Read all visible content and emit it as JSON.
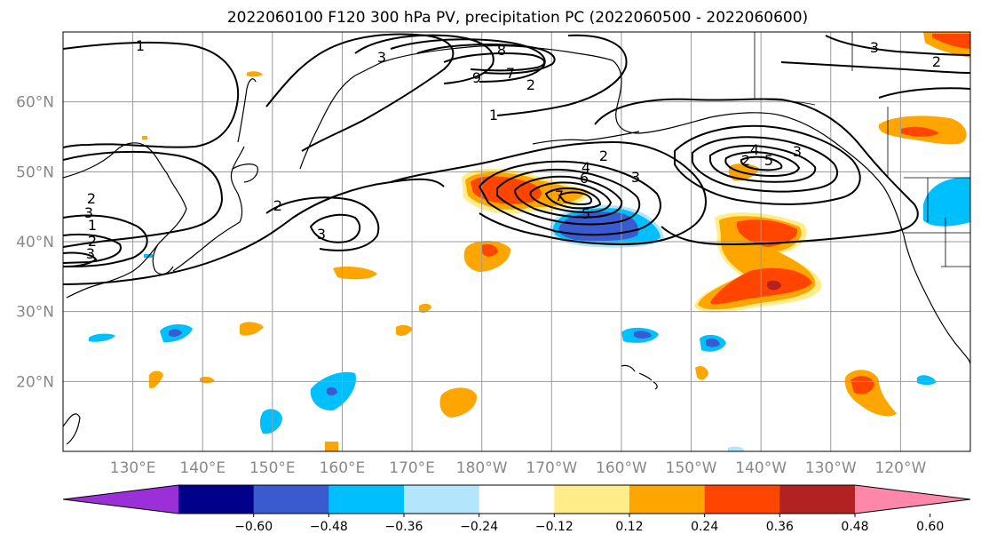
{
  "title": "2022060100 F120 300 hPa PV, precipitation PC (2022060500 - 2022060600)",
  "map": {
    "projection": "PlateCarree",
    "lon_range": [
      120,
      250
    ],
    "lat_range": [
      10,
      70
    ],
    "lat_ticks": [
      {
        "lat": 60,
        "label": "60°N"
      },
      {
        "lat": 50,
        "label": "50°N"
      },
      {
        "lat": 40,
        "label": "40°N"
      },
      {
        "lat": 30,
        "label": "30°N"
      },
      {
        "lat": 20,
        "label": "20°N"
      }
    ],
    "lon_ticks": [
      {
        "lon": 130,
        "label": "130°E"
      },
      {
        "lon": 140,
        "label": "140°E"
      },
      {
        "lon": 150,
        "label": "150°E"
      },
      {
        "lon": 160,
        "label": "160°E"
      },
      {
        "lon": 170,
        "label": "170°E"
      },
      {
        "lon": 180,
        "label": "180°W"
      },
      {
        "lon": 190,
        "label": "170°W"
      },
      {
        "lon": 200,
        "label": "160°W"
      },
      {
        "lon": 210,
        "label": "150°W"
      },
      {
        "lon": 220,
        "label": "140°W"
      },
      {
        "lon": 230,
        "label": "130°W"
      },
      {
        "lon": 240,
        "label": "120°W"
      }
    ],
    "gridlines": true
  },
  "colorbar": {
    "orientation": "horizontal",
    "extend": "both",
    "colors": [
      "#9b30d9",
      "#00008b",
      "#3a5bd0",
      "#00bfff",
      "#b3e5fc",
      "#ffffff",
      "#ffed8a",
      "#ffa500",
      "#ff4500",
      "#b22222",
      "#ff88aa"
    ],
    "tick_labels": [
      "−0.60",
      "−0.48",
      "−0.36",
      "−0.24",
      "−0.12",
      "0.12",
      "0.24",
      "0.36",
      "0.48",
      "0.60"
    ]
  },
  "colors": {
    "pos_light": "#ffed8a",
    "pos_mid": "#ffa500",
    "pos_high": "#ff4500",
    "neg_light": "#b3e5fc",
    "neg_mid": "#00bfff",
    "neg_high": "#3a5bd0",
    "neg_vhigh": "#9b30d9"
  },
  "pv_contour_labels": [
    "1",
    "2",
    "3",
    "8",
    "7",
    "9",
    "2",
    "1",
    "3",
    "2",
    "1",
    "2",
    "3",
    "2",
    "3",
    "4",
    "6",
    "7",
    "5",
    "2",
    "3",
    "4",
    "5",
    "3",
    "3",
    "2"
  ]
}
